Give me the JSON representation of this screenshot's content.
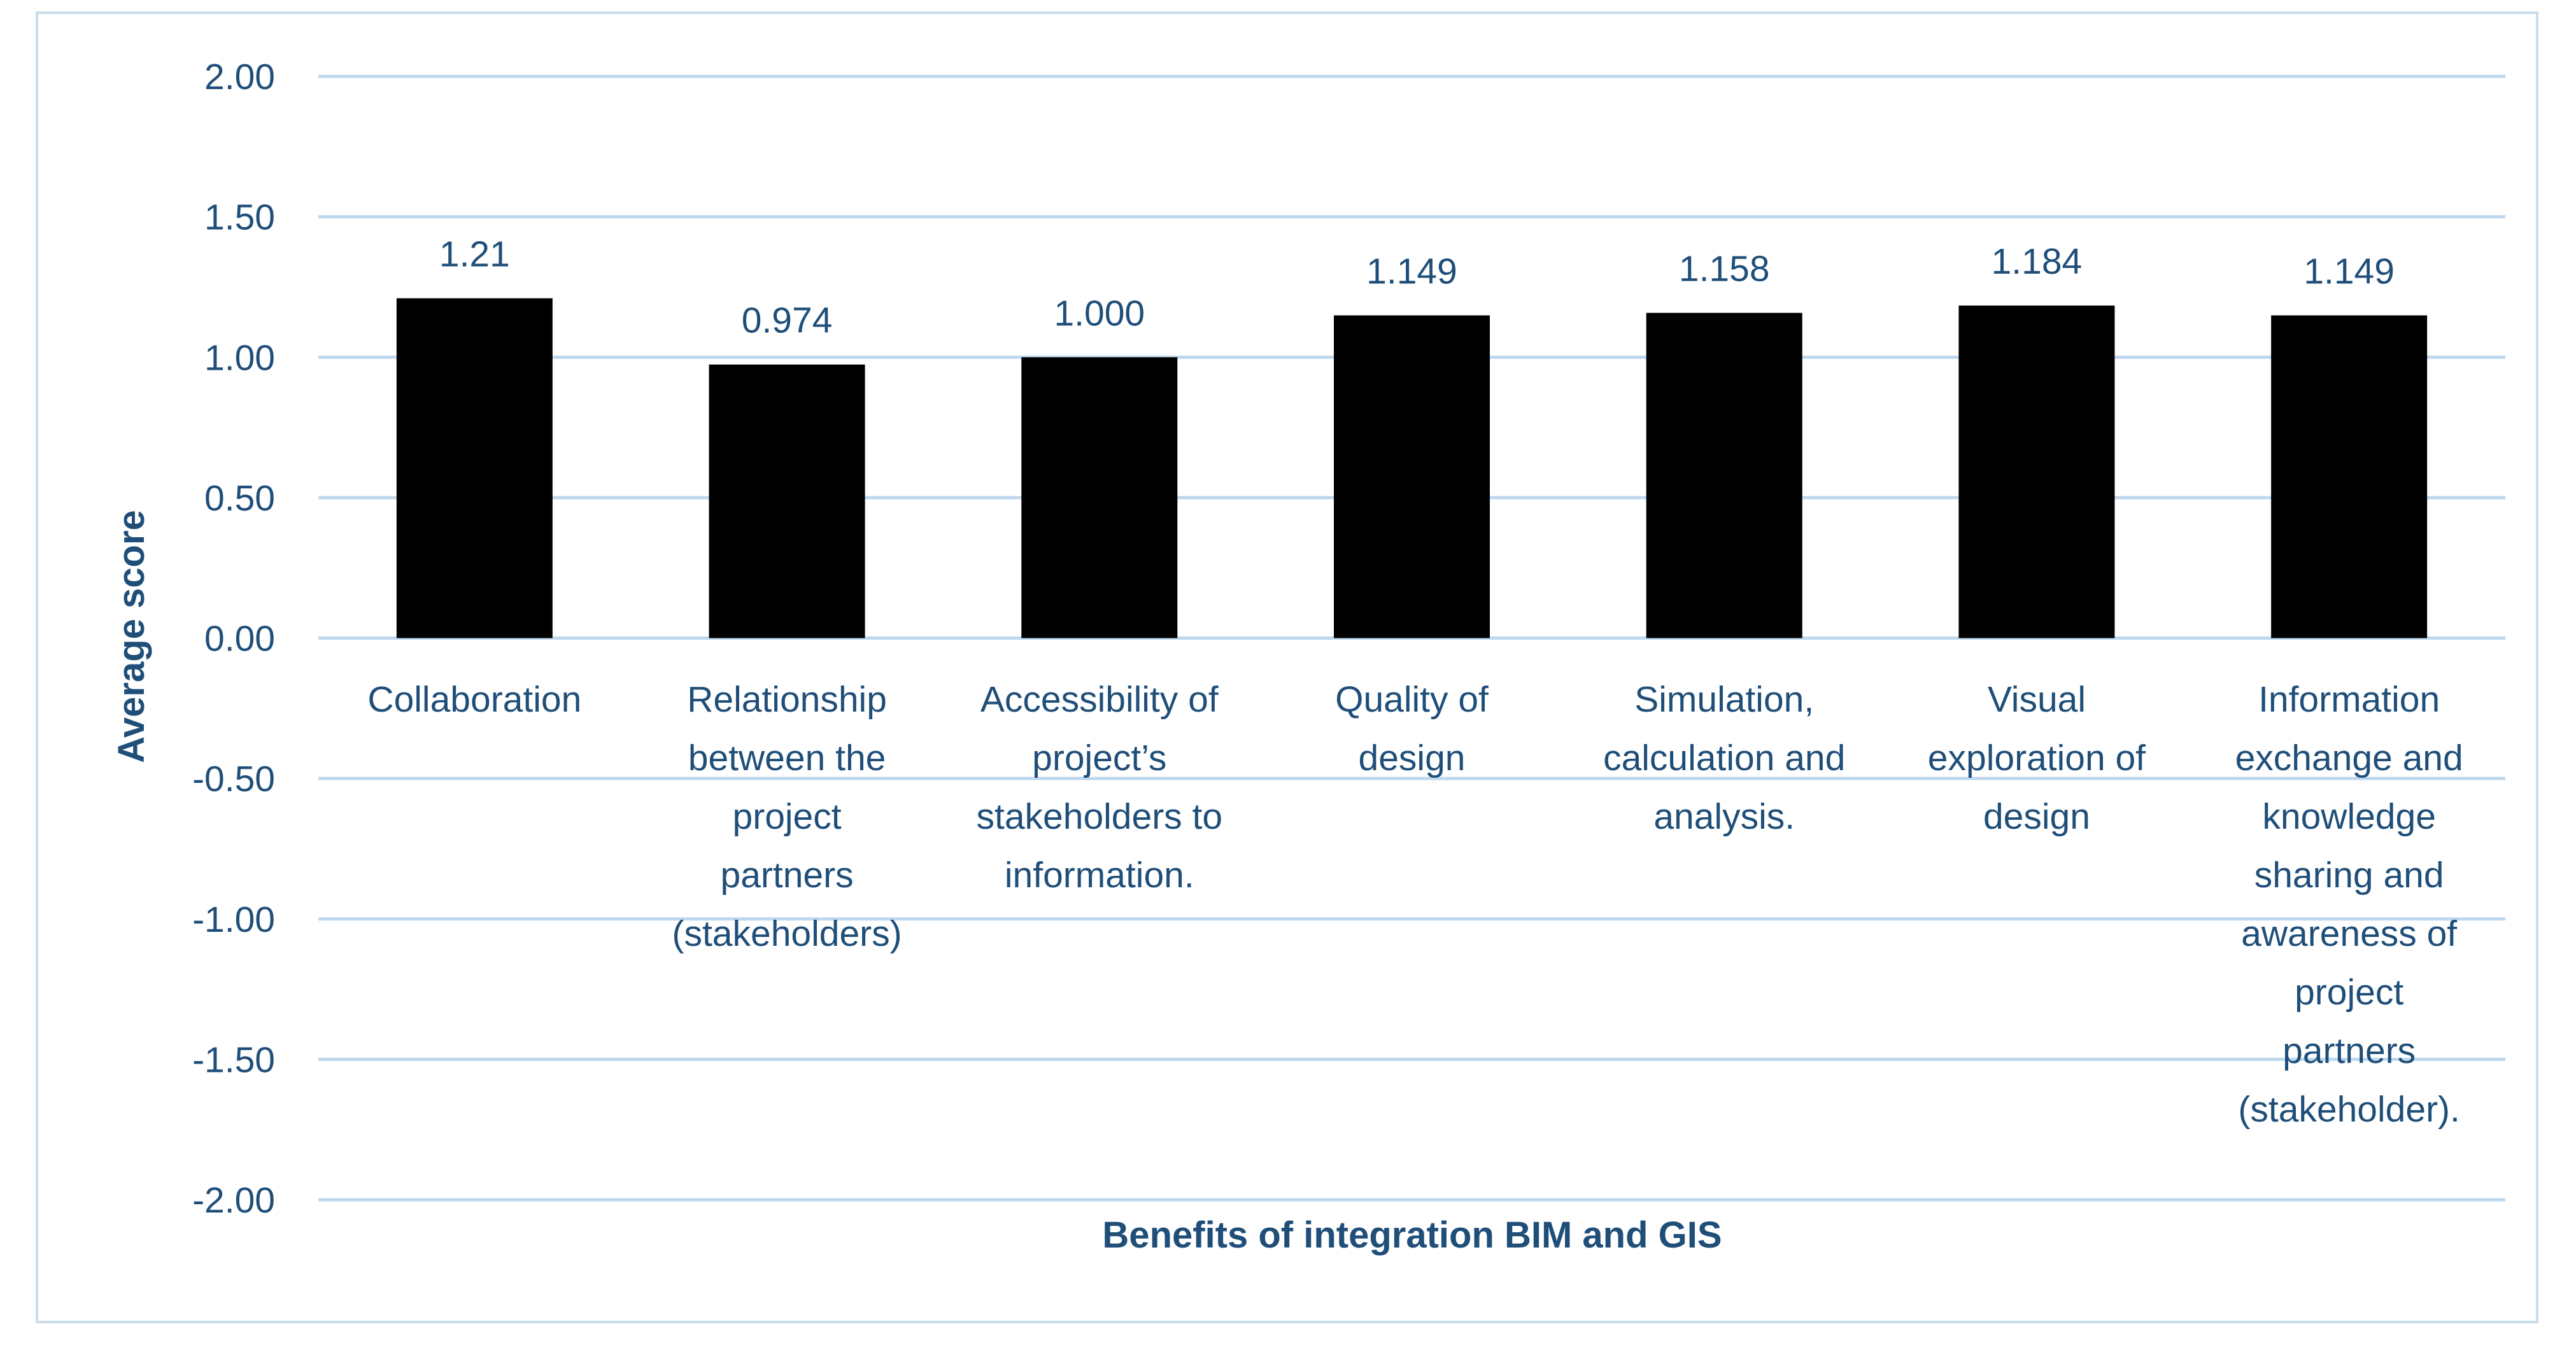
{
  "chart_data": {
    "type": "bar",
    "categories": [
      [
        "Collaboration"
      ],
      [
        "Relationship",
        "between the",
        "project",
        "partners",
        "(stakeholders)"
      ],
      [
        "Accessibility of",
        "project’s",
        "stakeholders to",
        "information."
      ],
      [
        "Quality of",
        "design"
      ],
      [
        "Simulation,",
        "calculation and",
        "analysis."
      ],
      [
        "Visual",
        "exploration of",
        "design"
      ],
      [
        "Information",
        "exchange and",
        "knowledge",
        "sharing and",
        "awareness of",
        "project",
        "partners",
        "(stakeholder)."
      ]
    ],
    "values": [
      1.21,
      0.974,
      1.0,
      1.149,
      1.158,
      1.184,
      1.149
    ],
    "value_labels": [
      "1.21",
      "0.974",
      "1.000",
      "1.149",
      "1.158",
      "1.184",
      "1.149"
    ],
    "yticks": [
      2.0,
      1.5,
      1.0,
      0.5,
      0.0,
      -0.5,
      -1.0,
      -1.5,
      -2.0
    ],
    "ytick_labels": [
      "2.00",
      "1.50",
      "1.00",
      "0.50",
      "0.00",
      "-0.50",
      "-1.00",
      "-1.50",
      "-2.00"
    ],
    "ylim": [
      -2,
      2
    ],
    "title": "",
    "xlabel": "Benefits of integration BIM and GIS",
    "ylabel": "Average score",
    "grid": true,
    "legend": "none"
  },
  "colors": {
    "bar": "#000000",
    "text": "#1f4e79",
    "grid": "#bdd7ee",
    "frame": "#c9dce9"
  }
}
